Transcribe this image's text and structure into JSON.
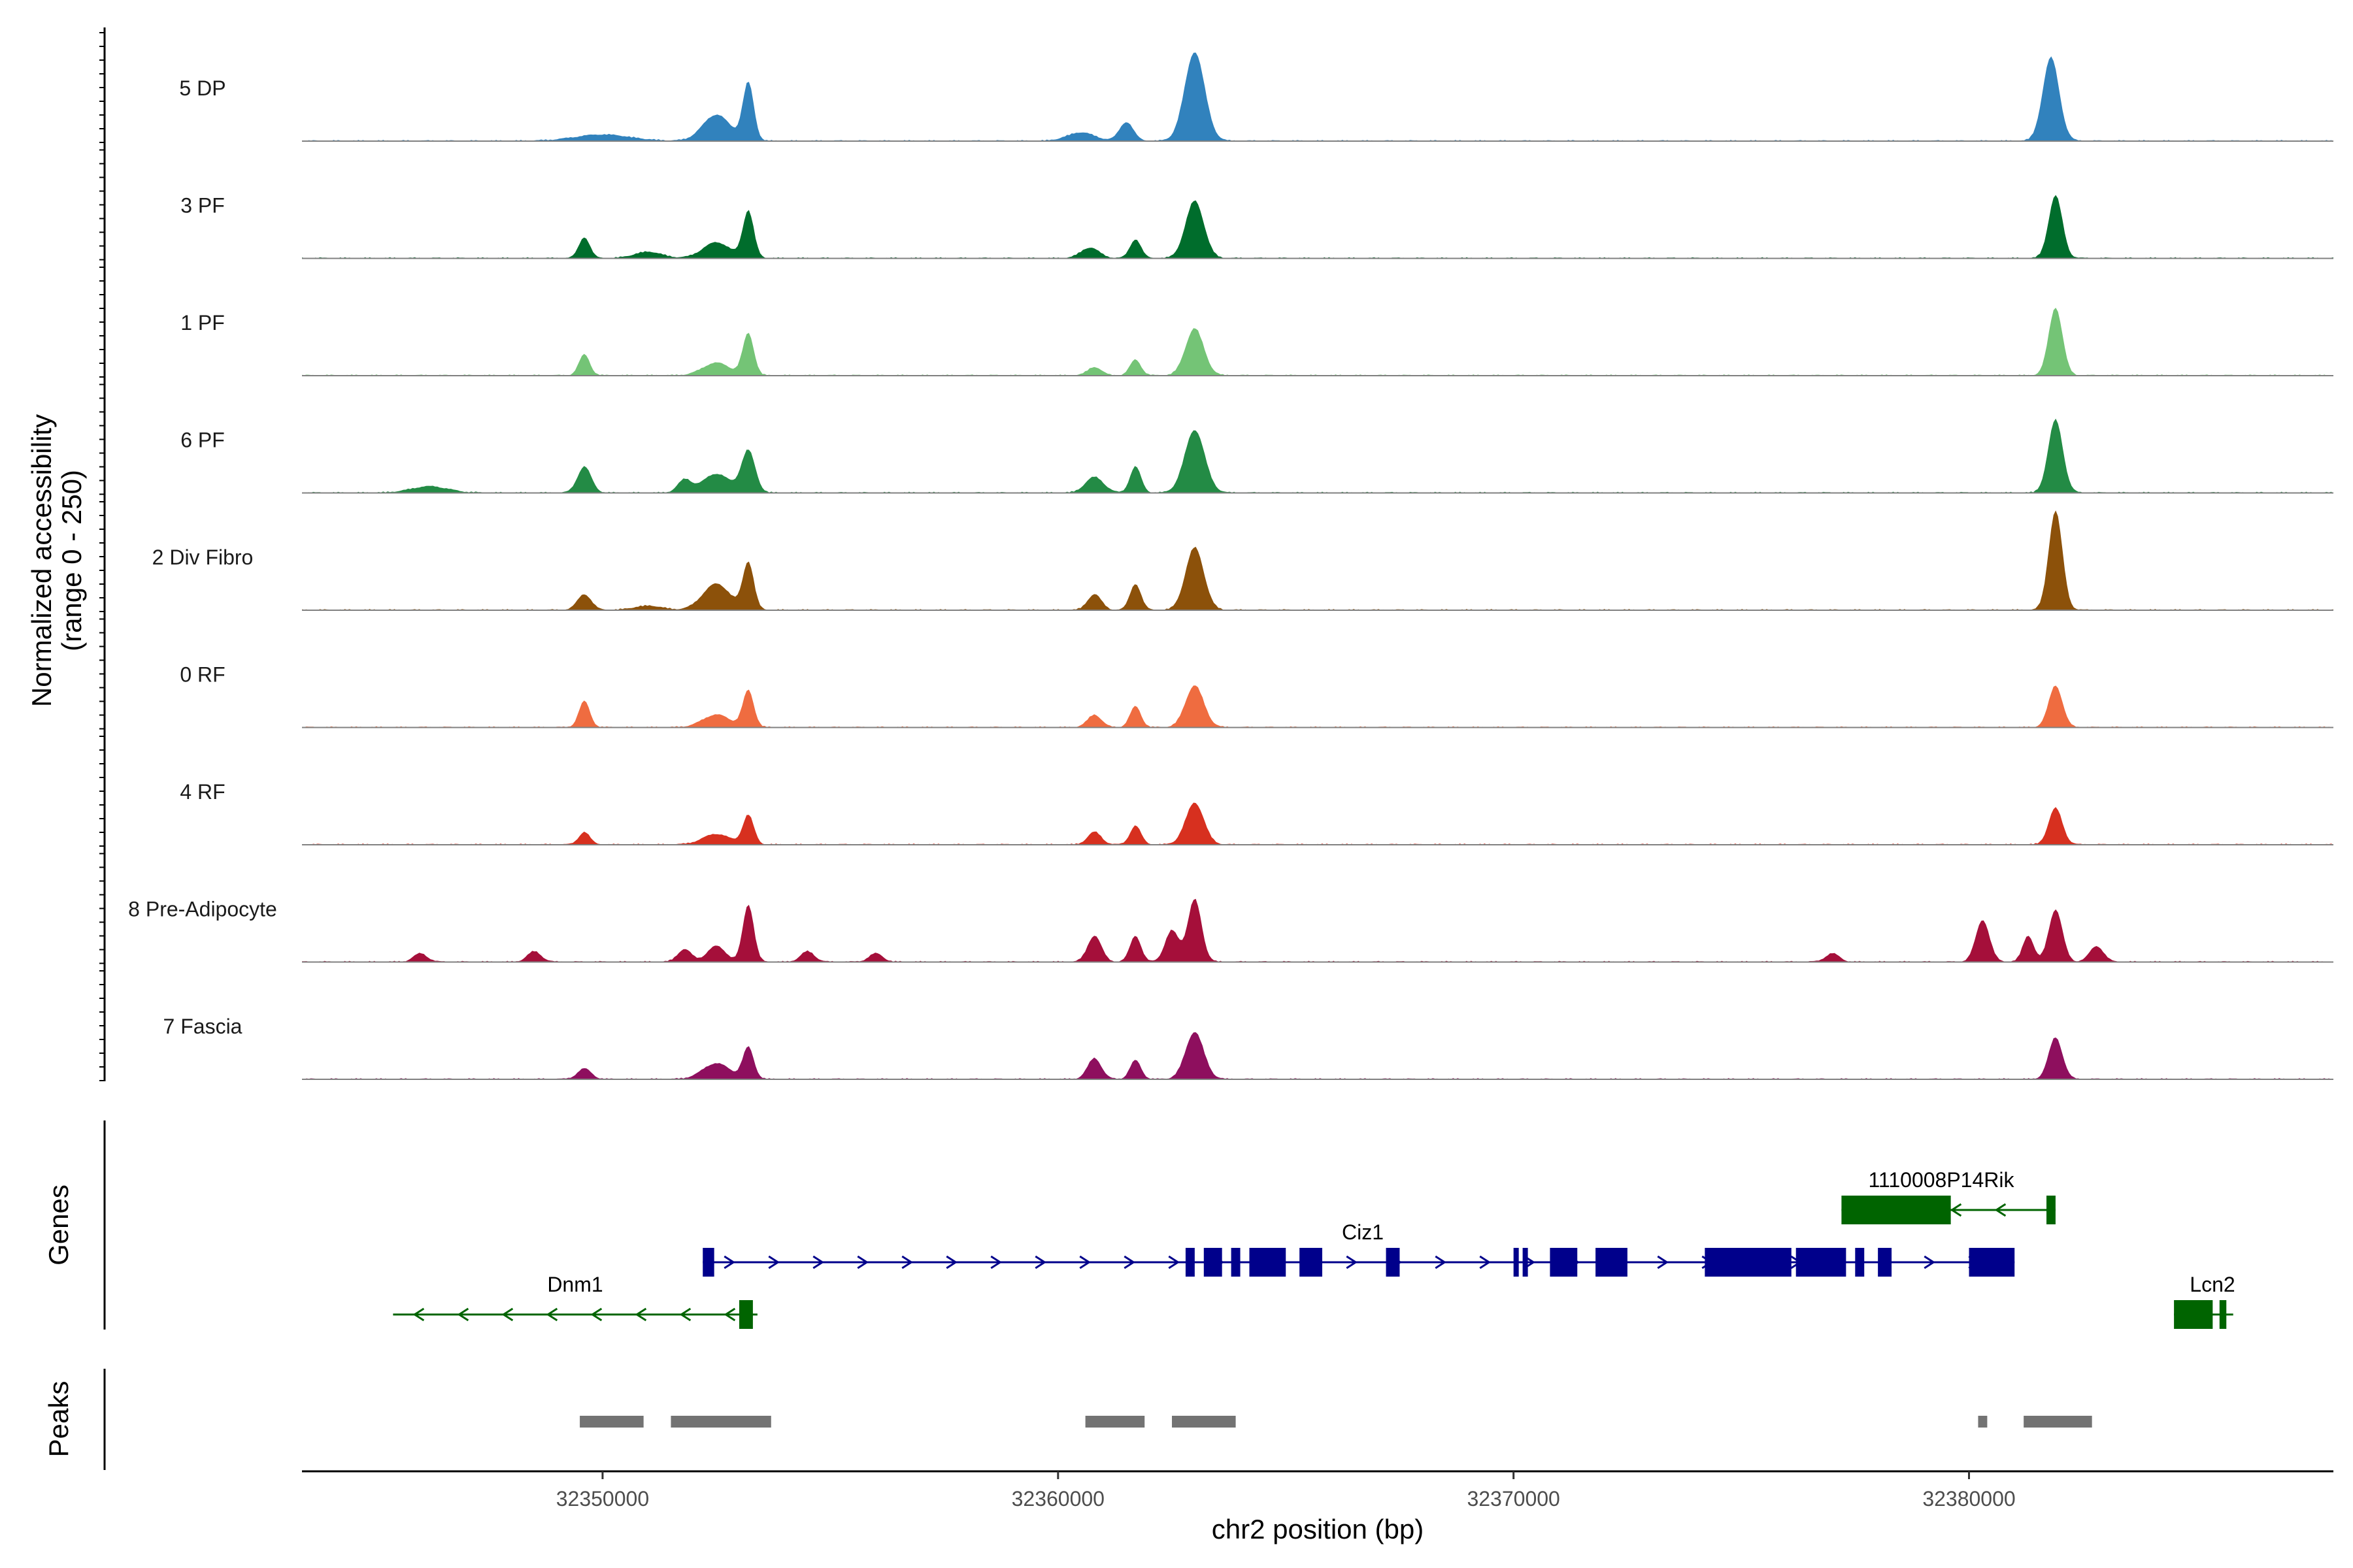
{
  "chart_data": {
    "type": "area",
    "title": "",
    "chromosome": "chr2",
    "xlabel": "chr2 position (bp)",
    "ylabel": "Normalized accessibility",
    "ylabel_range": "(range 0 - 250)",
    "xlim": [
      32343400,
      32388000
    ],
    "ylim": [
      0,
      250
    ],
    "x_ticks": [
      32350000,
      32360000,
      32370000,
      32380000
    ],
    "x_tick_labels": [
      "32350000",
      "32360000",
      "32370000",
      "32380000"
    ],
    "tracks": [
      {
        "name": "5 DP",
        "color": "#3182bd",
        "peaks": [
          [
            32352500,
            0.25,
            300
          ],
          [
            32353200,
            0.55,
            120
          ],
          [
            32361500,
            0.18,
            150
          ],
          [
            32363000,
            0.85,
            220
          ],
          [
            32381800,
            0.8,
            180
          ],
          [
            32350000,
            0.06,
            600
          ],
          [
            32360500,
            0.08,
            300
          ]
        ]
      },
      {
        "name": "3 PF",
        "color": "#006d2c",
        "peaks": [
          [
            32349600,
            0.2,
            120
          ],
          [
            32352500,
            0.15,
            300
          ],
          [
            32353200,
            0.45,
            120
          ],
          [
            32360700,
            0.1,
            200
          ],
          [
            32361700,
            0.18,
            120
          ],
          [
            32363000,
            0.55,
            200
          ],
          [
            32381900,
            0.6,
            150
          ],
          [
            32351000,
            0.06,
            300
          ]
        ]
      },
      {
        "name": "1 PF",
        "color": "#74c476",
        "peaks": [
          [
            32349600,
            0.2,
            120
          ],
          [
            32352500,
            0.12,
            300
          ],
          [
            32353200,
            0.4,
            120
          ],
          [
            32360800,
            0.08,
            150
          ],
          [
            32361700,
            0.15,
            120
          ],
          [
            32363000,
            0.45,
            200
          ],
          [
            32381900,
            0.65,
            150
          ]
        ]
      },
      {
        "name": "6 PF",
        "color": "#238b45",
        "peaks": [
          [
            32346200,
            0.06,
            400
          ],
          [
            32349600,
            0.25,
            150
          ],
          [
            32351800,
            0.12,
            150
          ],
          [
            32352500,
            0.18,
            300
          ],
          [
            32353200,
            0.4,
            150
          ],
          [
            32360800,
            0.15,
            200
          ],
          [
            32361700,
            0.25,
            120
          ],
          [
            32363000,
            0.6,
            220
          ],
          [
            32381900,
            0.7,
            160
          ]
        ]
      },
      {
        "name": "2 Div Fibro",
        "color": "#8c510a",
        "peaks": [
          [
            32349600,
            0.15,
            150
          ],
          [
            32352500,
            0.25,
            300
          ],
          [
            32353200,
            0.45,
            120
          ],
          [
            32360800,
            0.15,
            150
          ],
          [
            32361700,
            0.25,
            120
          ],
          [
            32363000,
            0.6,
            200
          ],
          [
            32381900,
            0.95,
            150
          ],
          [
            32351000,
            0.04,
            300
          ]
        ]
      },
      {
        "name": "0 RF",
        "color": "#ef6c40",
        "peaks": [
          [
            32349600,
            0.25,
            120
          ],
          [
            32352500,
            0.12,
            300
          ],
          [
            32353200,
            0.35,
            120
          ],
          [
            32360800,
            0.12,
            150
          ],
          [
            32361700,
            0.2,
            120
          ],
          [
            32363000,
            0.4,
            200
          ],
          [
            32381900,
            0.4,
            150
          ]
        ]
      },
      {
        "name": "4 RF",
        "color": "#d7301f",
        "peaks": [
          [
            32349600,
            0.12,
            120
          ],
          [
            32352500,
            0.1,
            300
          ],
          [
            32353200,
            0.28,
            120
          ],
          [
            32360800,
            0.12,
            150
          ],
          [
            32361700,
            0.18,
            120
          ],
          [
            32363000,
            0.4,
            200
          ],
          [
            32381900,
            0.35,
            150
          ]
        ]
      },
      {
        "name": "8 Pre-Adipocyte",
        "color": "#a50f3a",
        "peaks": [
          [
            32346000,
            0.08,
            150
          ],
          [
            32348500,
            0.1,
            150
          ],
          [
            32351800,
            0.12,
            150
          ],
          [
            32352500,
            0.15,
            200
          ],
          [
            32353200,
            0.55,
            120
          ],
          [
            32354500,
            0.1,
            150
          ],
          [
            32356000,
            0.08,
            150
          ],
          [
            32360800,
            0.25,
            150
          ],
          [
            32361700,
            0.25,
            120
          ],
          [
            32363000,
            0.6,
            150
          ],
          [
            32362500,
            0.3,
            150
          ],
          [
            32377000,
            0.08,
            150
          ],
          [
            32380300,
            0.4,
            150
          ],
          [
            32381300,
            0.25,
            120
          ],
          [
            32381900,
            0.5,
            150
          ],
          [
            32382800,
            0.15,
            150
          ]
        ]
      },
      {
        "name": "7 Fascia",
        "color": "#8e0f5e",
        "peaks": [
          [
            32349600,
            0.1,
            150
          ],
          [
            32352500,
            0.15,
            300
          ],
          [
            32353200,
            0.3,
            120
          ],
          [
            32360800,
            0.2,
            150
          ],
          [
            32361700,
            0.18,
            120
          ],
          [
            32363000,
            0.45,
            200
          ],
          [
            32381900,
            0.4,
            150
          ]
        ]
      }
    ],
    "genes": [
      {
        "name": "Ciz1",
        "strand": "+",
        "color": "#00008b",
        "start": 32352200,
        "end": 32381000,
        "exons": [
          [
            32352200,
            32352450
          ],
          [
            32362800,
            32363000
          ],
          [
            32363200,
            32363600
          ],
          [
            32363800,
            32364000
          ],
          [
            32364200,
            32365000
          ],
          [
            32365300,
            32365800
          ],
          [
            32367200,
            32367500
          ],
          [
            32370000,
            32370100
          ],
          [
            32370200,
            32370300
          ],
          [
            32370800,
            32371400
          ],
          [
            32371800,
            32372500
          ],
          [
            32374200,
            32376100
          ],
          [
            32376200,
            32377300
          ],
          [
            32377500,
            32377700
          ],
          [
            32378000,
            32378300
          ],
          [
            32380000,
            32381000
          ]
        ]
      },
      {
        "name": "Dnm1",
        "strand": "-",
        "color": "#006400",
        "start": 32345400,
        "end": 32353400,
        "exons": [
          [
            32353000,
            32353300
          ]
        ]
      },
      {
        "name": "1110008P14Rik",
        "strand": "-",
        "color": "#006400",
        "start": 32377200,
        "end": 32381900,
        "exons": [
          [
            32377200,
            32379600
          ],
          [
            32381700,
            32381900
          ]
        ]
      },
      {
        "name": "Lcn2",
        "strand": "-",
        "color": "#006400",
        "start": 32384500,
        "end": 32385800,
        "exons": [
          [
            32384500,
            32385350
          ],
          [
            32385500,
            32385650
          ]
        ]
      }
    ],
    "peak_regions": [
      [
        32349500,
        32350900
      ],
      [
        32351500,
        32353700
      ],
      [
        32360600,
        32361900
      ],
      [
        32362500,
        32363900
      ],
      [
        32380200,
        32380400
      ],
      [
        32381200,
        32382700
      ]
    ],
    "panel_labels": {
      "genes": "Genes",
      "peaks": "Peaks"
    }
  }
}
